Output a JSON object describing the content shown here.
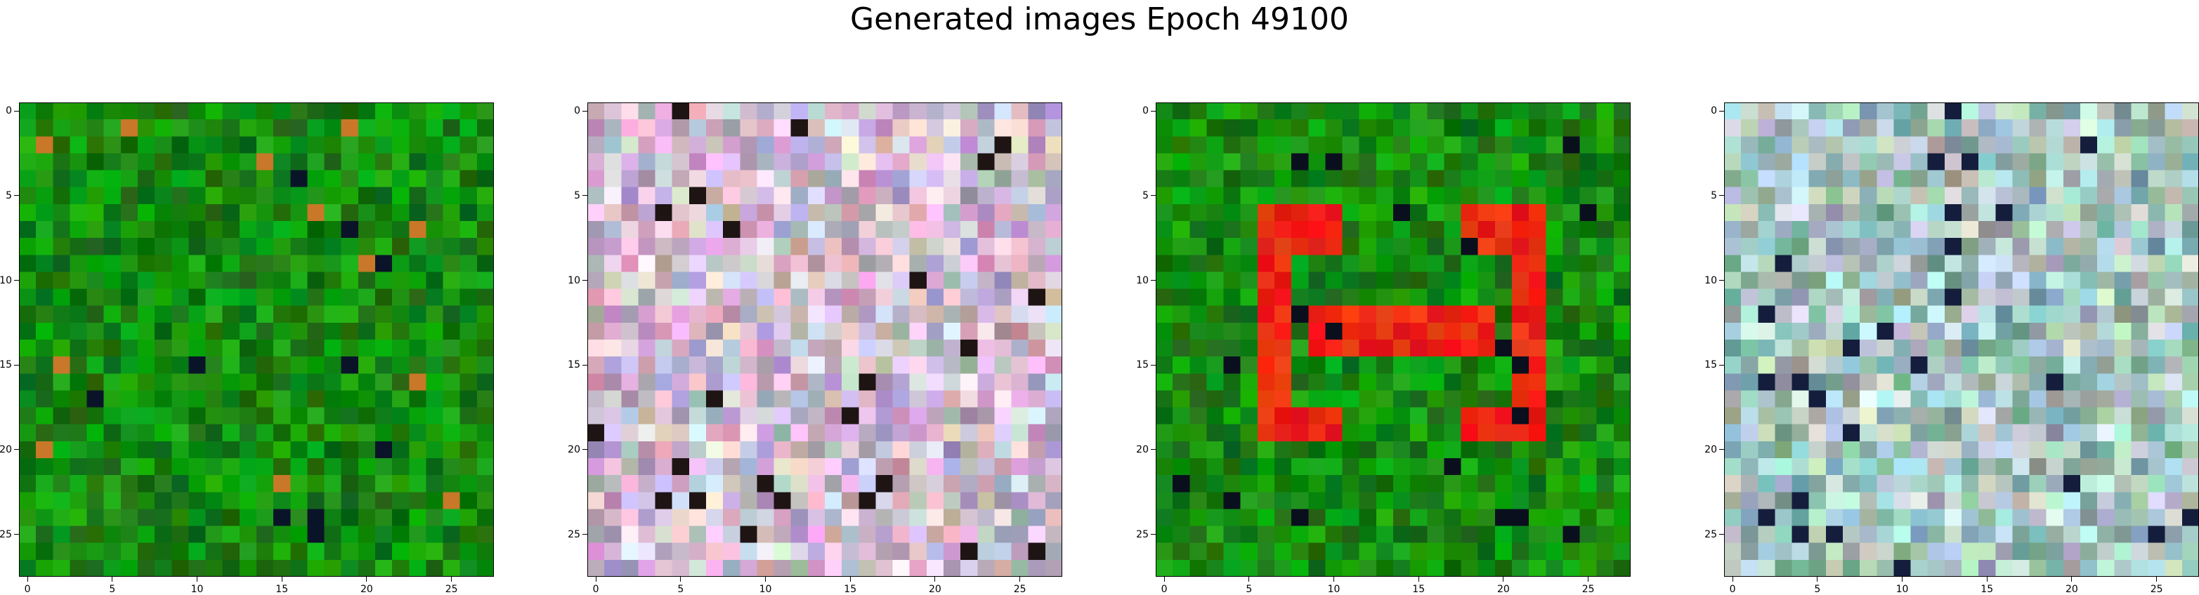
{
  "figure": {
    "title": "Generated images Epoch 49100"
  },
  "axes": {
    "ticks": [
      0,
      5,
      10,
      15,
      20,
      25
    ],
    "tick_labels": [
      "0",
      "5",
      "10",
      "15",
      "20",
      "25"
    ],
    "grid_size": 28
  },
  "panels": [
    {
      "palette": "green",
      "base_color": "#0a8a12"
    },
    {
      "palette": "pastel",
      "base_color": "#d9c8dc"
    },
    {
      "palette": "green-with-red-shape",
      "base_color": "#0c8614",
      "accent_color": "#ee1a14"
    },
    {
      "palette": "pastel-teal",
      "base_color": "#bcd0cb"
    }
  ]
}
